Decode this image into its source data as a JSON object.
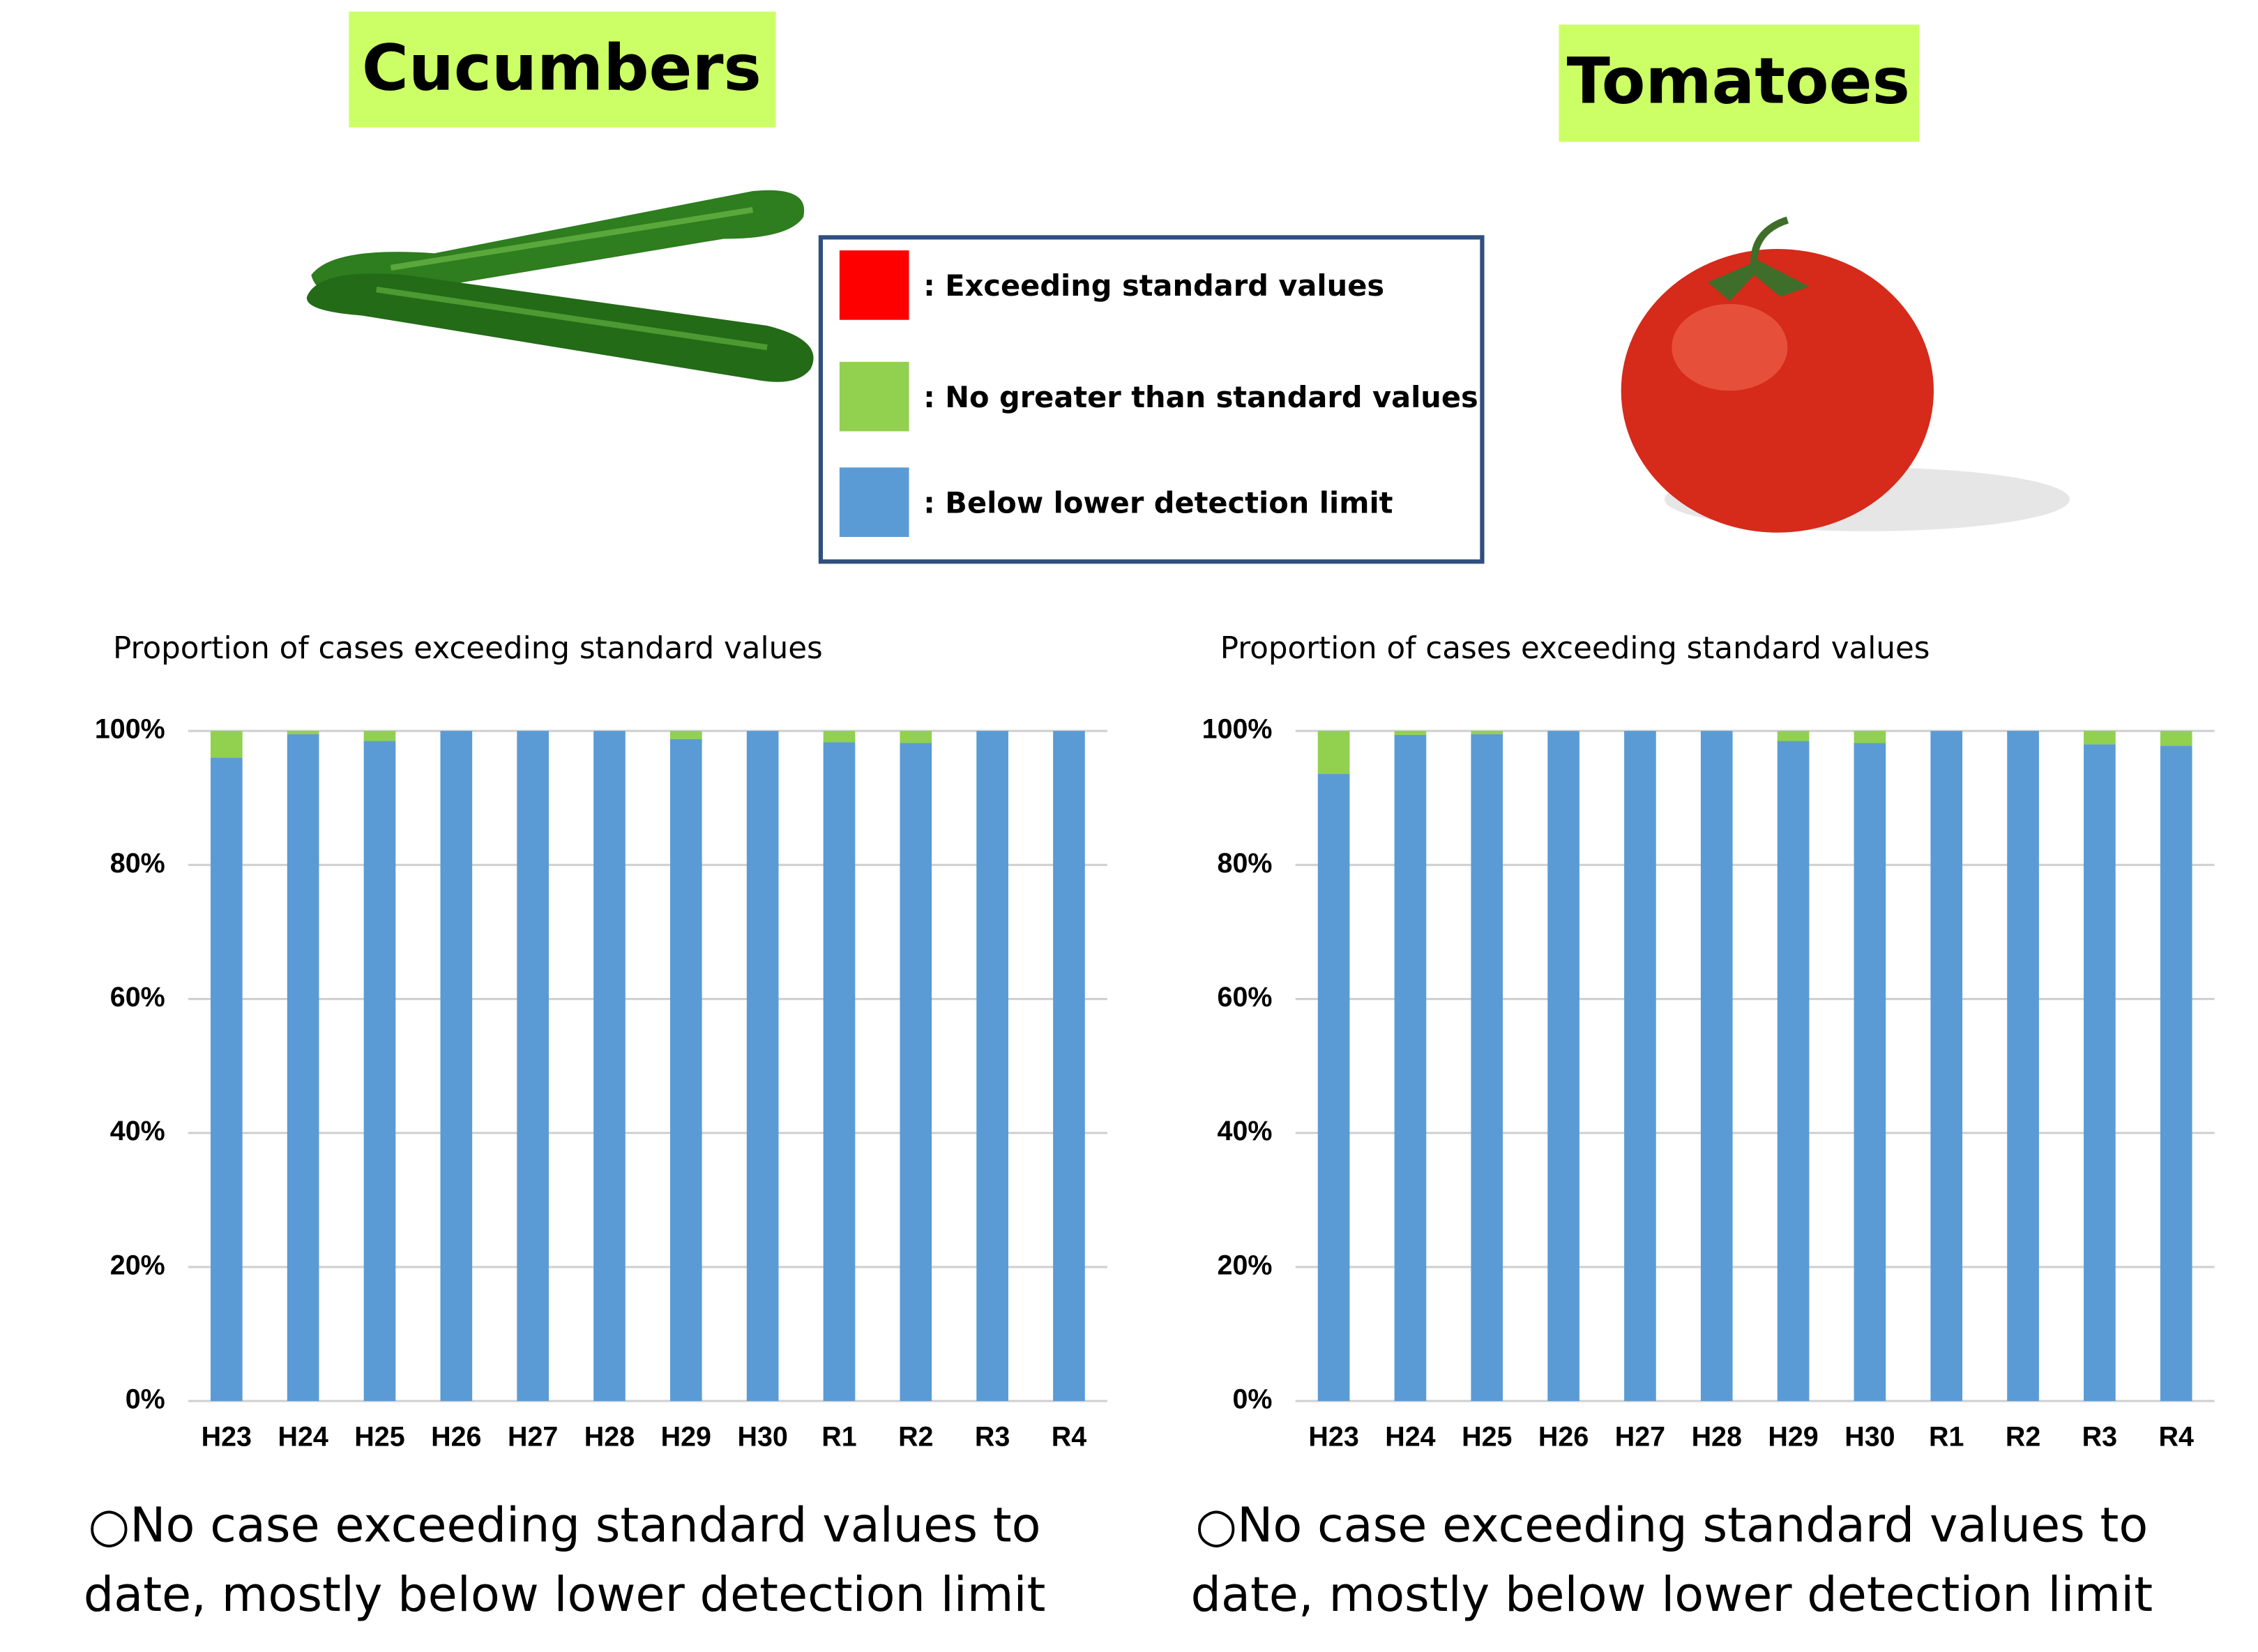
{
  "legend_colors": [
    "#ff0000",
    "#92d050",
    "#5b9bd5"
  ],
  "chart_data": [
    {
      "type": "stacked_bar",
      "title": "Cucumbers",
      "y_label": "Proportion of cases exceeding standard values",
      "categories": [
        "H23",
        "H24",
        "H25",
        "H26",
        "H27",
        "H28",
        "H29",
        "H30",
        "R1",
        "R2",
        "R3",
        "R4"
      ],
      "series": [
        {
          "name": ": Exceeding standard values",
          "color": "#ff0000",
          "values": [
            0,
            0,
            0,
            0,
            0,
            0,
            0,
            0,
            0,
            0,
            0,
            0
          ]
        },
        {
          "name": ": No greater than standard values",
          "color": "#92d050",
          "values": [
            4,
            0.5,
            1.5,
            0,
            0,
            0,
            1.2,
            0,
            1.7,
            1.8,
            0,
            0
          ]
        },
        {
          "name": ": Below lower detection limit",
          "color": "#5b9bd5",
          "values": [
            96,
            99.5,
            98.5,
            100,
            100,
            100,
            98.8,
            100,
            98.3,
            98.2,
            100,
            100
          ]
        }
      ],
      "ylim": [
        0,
        100
      ],
      "yticks": [
        {
          "value": 0,
          "label": "0%"
        },
        {
          "value": 20,
          "label": "20%"
        },
        {
          "value": 40,
          "label": "40%"
        },
        {
          "value": 60,
          "label": "60%"
        },
        {
          "value": 80,
          "label": "80%"
        },
        {
          "value": 100,
          "label": "100%"
        }
      ],
      "grid": true,
      "note": [
        "○No case exceeding standard values to",
        "date, mostly below lower detection limit"
      ]
    },
    {
      "type": "stacked_bar",
      "title": "Tomatoes",
      "y_label": "Proportion of cases exceeding standard values",
      "categories": [
        "H23",
        "H24",
        "H25",
        "H26",
        "H27",
        "H28",
        "H29",
        "H30",
        "R1",
        "R2",
        "R3",
        "R4"
      ],
      "series": [
        {
          "color": "#ff0000",
          "values": [
            0,
            0,
            0,
            0,
            0,
            0,
            0,
            0,
            0,
            0,
            0,
            0
          ]
        },
        {
          "color": "#92d050",
          "values": [
            6.4,
            0.6,
            0.5,
            0,
            0,
            0,
            1.5,
            1.8,
            0,
            0,
            2,
            2.2
          ]
        },
        {
          "color": "#5b9bd5",
          "values": [
            93.6,
            99.4,
            99.5,
            100,
            100,
            100,
            98.5,
            98.2,
            100,
            100,
            98,
            97.8
          ]
        }
      ],
      "ylim": [
        0,
        100
      ],
      "yticks": [
        {
          "value": 0,
          "label": "0%"
        },
        {
          "value": 20,
          "label": "20%"
        },
        {
          "value": 40,
          "label": "40%"
        },
        {
          "value": 60,
          "label": "60%"
        },
        {
          "value": 80,
          "label": "80%"
        },
        {
          "value": 100,
          "label": "100%"
        }
      ],
      "grid": true,
      "note": [
        "○No case exceeding standard values to",
        "date, mostly below lower detection limit"
      ]
    }
  ]
}
